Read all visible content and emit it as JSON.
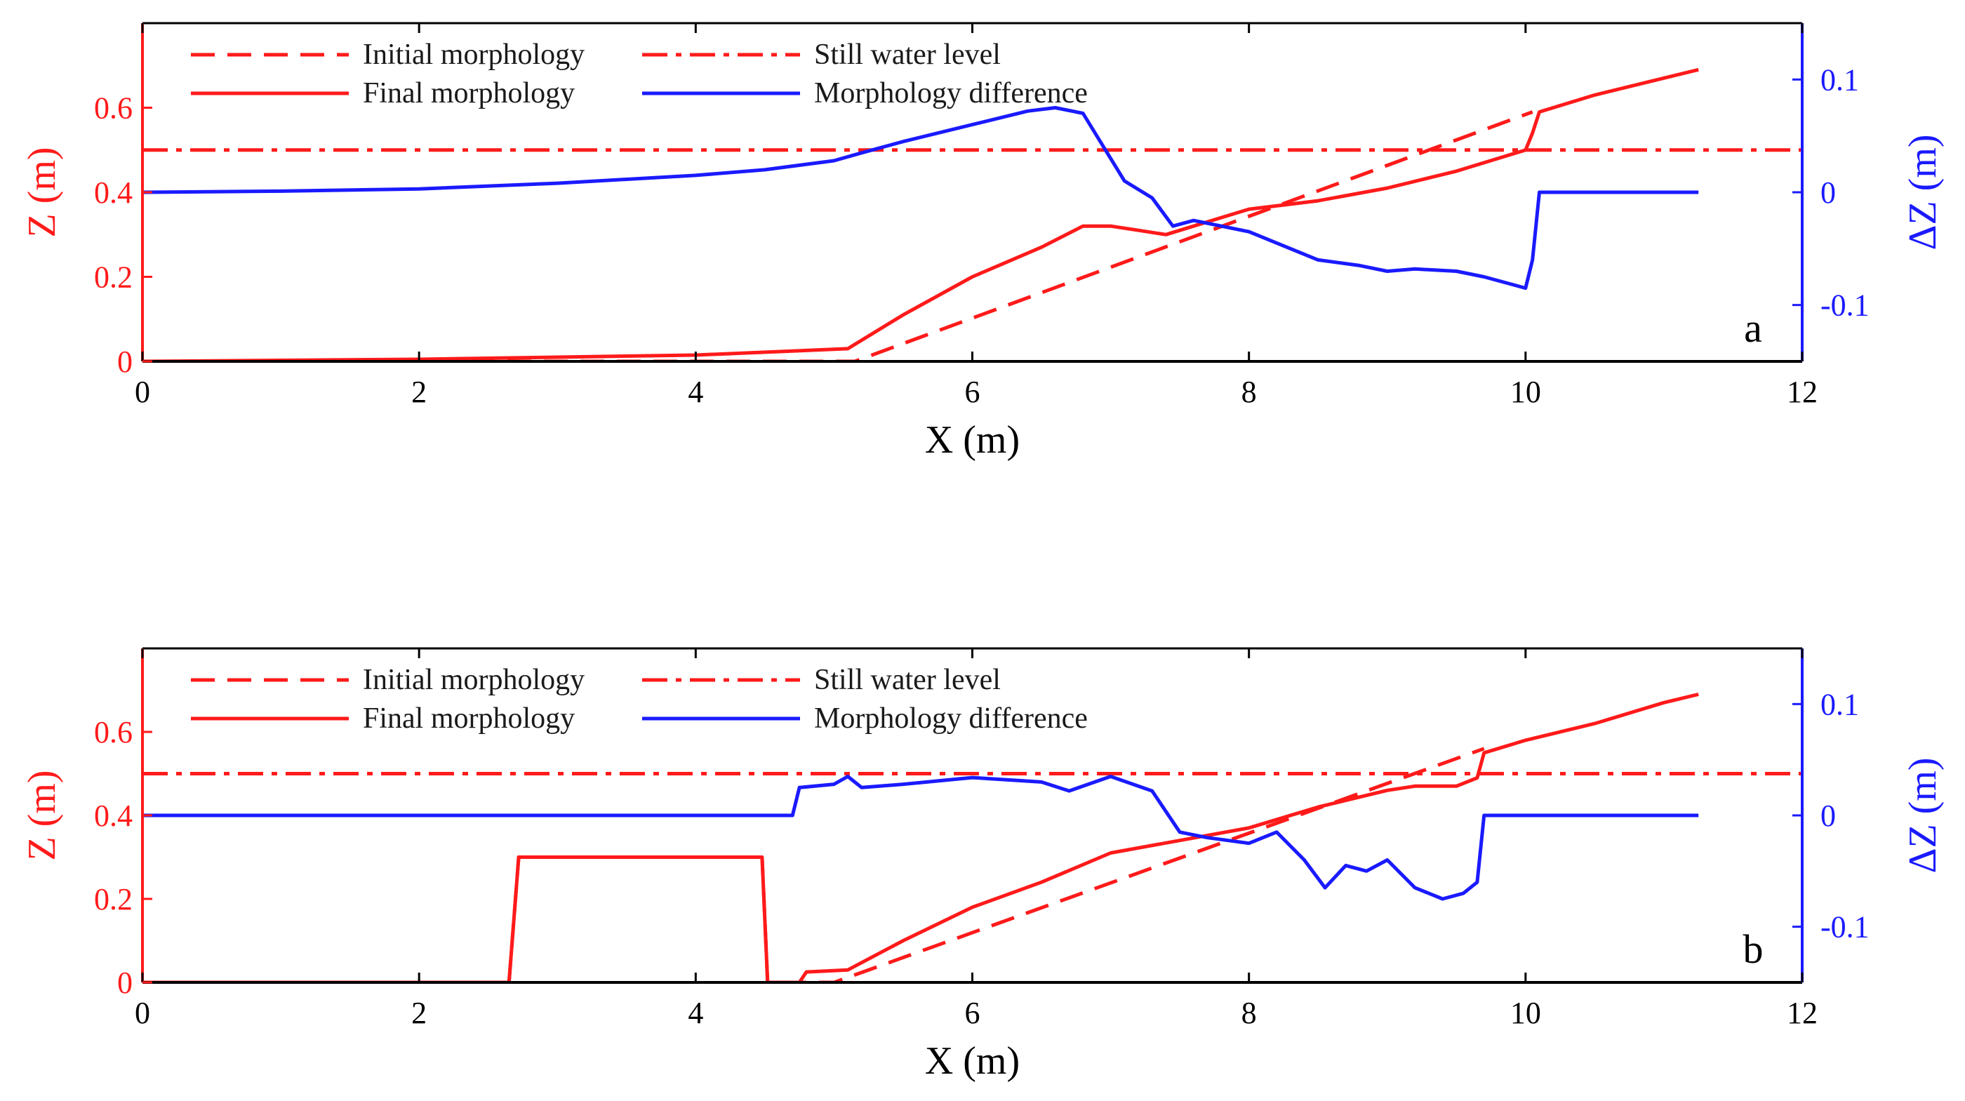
{
  "colors": {
    "left_axis": "#ff1a1a",
    "right_axis": "#1a1aff",
    "bottom_axis": "#000000",
    "initial": "#ff1a1a",
    "final": "#ff1a1a",
    "still_water": "#ff1a1a",
    "difference": "#1a1aff"
  },
  "chart_data": [
    {
      "type": "line",
      "panel_label": "a",
      "xlabel": "X (m)",
      "ylabel": "Z (m)",
      "y2label": "ΔZ (m)",
      "xlim": [
        0,
        12
      ],
      "ylim": [
        0,
        0.8
      ],
      "y2lim": [
        -0.15,
        0.15
      ],
      "xticks": [
        "0",
        "2",
        "4",
        "6",
        "8",
        "10",
        "12"
      ],
      "yticks": [
        "0",
        "0.2",
        "0.4",
        "0.6"
      ],
      "y2ticks": [
        "-0.1",
        "0",
        "0.1"
      ],
      "legend": {
        "initial": "Initial morphology",
        "still_water": "Still water level",
        "final": "Final morphology",
        "difference": "Morphology difference"
      },
      "series": [
        {
          "name": "Initial morphology",
          "axis": "left",
          "style": "dashed",
          "x": [
            0,
            5.15,
            10.05
          ],
          "y": [
            0,
            0,
            0.59
          ]
        },
        {
          "name": "Still water level",
          "axis": "left",
          "style": "dashdot",
          "x": [
            0,
            12
          ],
          "y": [
            0.5,
            0.5
          ]
        },
        {
          "name": "Final morphology",
          "axis": "left",
          "style": "solid",
          "x": [
            0,
            2,
            4,
            5.1,
            5.5,
            6.0,
            6.5,
            6.8,
            7.0,
            7.2,
            7.4,
            7.6,
            7.8,
            8.0,
            8.5,
            9.0,
            9.5,
            10.0,
            10.05,
            10.1,
            10.5,
            11.0,
            11.25
          ],
          "y": [
            0,
            0.005,
            0.015,
            0.03,
            0.11,
            0.2,
            0.27,
            0.32,
            0.32,
            0.31,
            0.3,
            0.32,
            0.34,
            0.36,
            0.38,
            0.41,
            0.45,
            0.5,
            0.54,
            0.59,
            0.63,
            0.67,
            0.69
          ]
        },
        {
          "name": "Morphology difference",
          "axis": "right",
          "style": "solid",
          "x": [
            0,
            1,
            2,
            3,
            4,
            4.5,
            5.0,
            5.2,
            5.5,
            6.0,
            6.4,
            6.6,
            6.8,
            6.95,
            7.1,
            7.3,
            7.45,
            7.6,
            7.8,
            8.0,
            8.2,
            8.5,
            8.8,
            9.0,
            9.2,
            9.5,
            9.7,
            10.0,
            10.05,
            10.1,
            11.25
          ],
          "y": [
            0,
            0.001,
            0.003,
            0.008,
            0.015,
            0.02,
            0.028,
            0.035,
            0.045,
            0.06,
            0.072,
            0.075,
            0.07,
            0.04,
            0.01,
            -0.005,
            -0.03,
            -0.025,
            -0.03,
            -0.035,
            -0.045,
            -0.06,
            -0.065,
            -0.07,
            -0.068,
            -0.07,
            -0.075,
            -0.085,
            -0.06,
            0,
            0
          ]
        }
      ]
    },
    {
      "type": "line",
      "panel_label": "b",
      "xlabel": "X (m)",
      "ylabel": "Z (m)",
      "y2label": "ΔZ (m)",
      "xlim": [
        0,
        12
      ],
      "ylim": [
        0,
        0.8
      ],
      "y2lim": [
        -0.15,
        0.15
      ],
      "xticks": [
        "0",
        "2",
        "4",
        "6",
        "8",
        "10",
        "12"
      ],
      "yticks": [
        "0",
        "0.2",
        "0.4",
        "0.6"
      ],
      "y2ticks": [
        "-0.1",
        "0",
        "0.1"
      ],
      "legend": {
        "initial": "Initial morphology",
        "still_water": "Still water level",
        "final": "Final morphology",
        "difference": "Morphology difference"
      },
      "series": [
        {
          "name": "Initial morphology",
          "axis": "left",
          "style": "dashed",
          "x": [
            0,
            2.65,
            2.72,
            4.48,
            4.52,
            5.0,
            9.7
          ],
          "y": [
            0,
            0,
            0.3,
            0.3,
            0,
            0,
            0.56
          ]
        },
        {
          "name": "Still water level",
          "axis": "left",
          "style": "dashdot",
          "x": [
            0,
            12
          ],
          "y": [
            0.5,
            0.5
          ]
        },
        {
          "name": "Final morphology",
          "axis": "left",
          "style": "solid",
          "x": [
            0,
            2.65,
            2.72,
            4.48,
            4.52,
            4.75,
            4.8,
            5.1,
            5.5,
            6.0,
            6.5,
            7.0,
            7.5,
            8.0,
            8.5,
            9.0,
            9.2,
            9.5,
            9.65,
            9.7,
            10.0,
            10.5,
            11.0,
            11.25
          ],
          "y": [
            0,
            0,
            0.3,
            0.3,
            0,
            0,
            0.025,
            0.03,
            0.1,
            0.18,
            0.24,
            0.31,
            0.34,
            0.37,
            0.42,
            0.46,
            0.47,
            0.47,
            0.49,
            0.55,
            0.58,
            0.62,
            0.67,
            0.69
          ]
        },
        {
          "name": "Morphology difference",
          "axis": "right",
          "style": "solid",
          "x": [
            0,
            4.7,
            4.75,
            5.0,
            5.1,
            5.2,
            5.5,
            6.0,
            6.5,
            6.7,
            7.0,
            7.3,
            7.5,
            7.7,
            8.0,
            8.2,
            8.4,
            8.55,
            8.7,
            8.85,
            9.0,
            9.2,
            9.4,
            9.55,
            9.65,
            9.7,
            11.25
          ],
          "y": [
            0,
            0,
            0.025,
            0.028,
            0.035,
            0.025,
            0.028,
            0.034,
            0.03,
            0.022,
            0.035,
            0.022,
            -0.015,
            -0.02,
            -0.025,
            -0.015,
            -0.04,
            -0.065,
            -0.045,
            -0.05,
            -0.04,
            -0.065,
            -0.075,
            -0.07,
            -0.06,
            0,
            0
          ]
        }
      ]
    }
  ]
}
